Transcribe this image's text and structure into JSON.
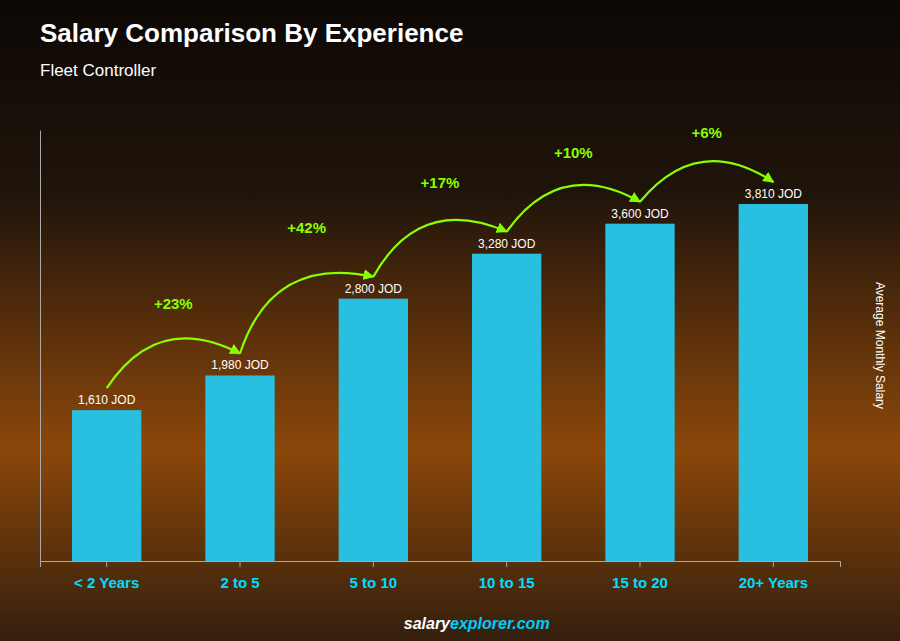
{
  "chart_data": {
    "type": "bar",
    "title": "Salary Comparison By Experience",
    "subtitle": "Fleet Controller",
    "y_label": "Average Monthly Salary",
    "categories": [
      "< 2 Years",
      "2 to 5",
      "5 to 10",
      "10 to 15",
      "15 to 20",
      "20+ Years"
    ],
    "values": [
      1610,
      1980,
      2800,
      3280,
      3600,
      3810
    ],
    "value_labels": [
      "1,610 JOD",
      "1,980 JOD",
      "2,800 JOD",
      "3,280 JOD",
      "3,600 JOD",
      "3,810 JOD"
    ],
    "data_labels": true,
    "annotations": [
      "+23%",
      "+42%",
      "+17%",
      "+10%",
      "+6%"
    ],
    "footer": [
      "salary",
      "explorer.com"
    ],
    "color": "#29bfe0",
    "ylim": [
      0,
      4600
    ],
    "yticks": [],
    "tick_labels": "x",
    "grid": false
  }
}
